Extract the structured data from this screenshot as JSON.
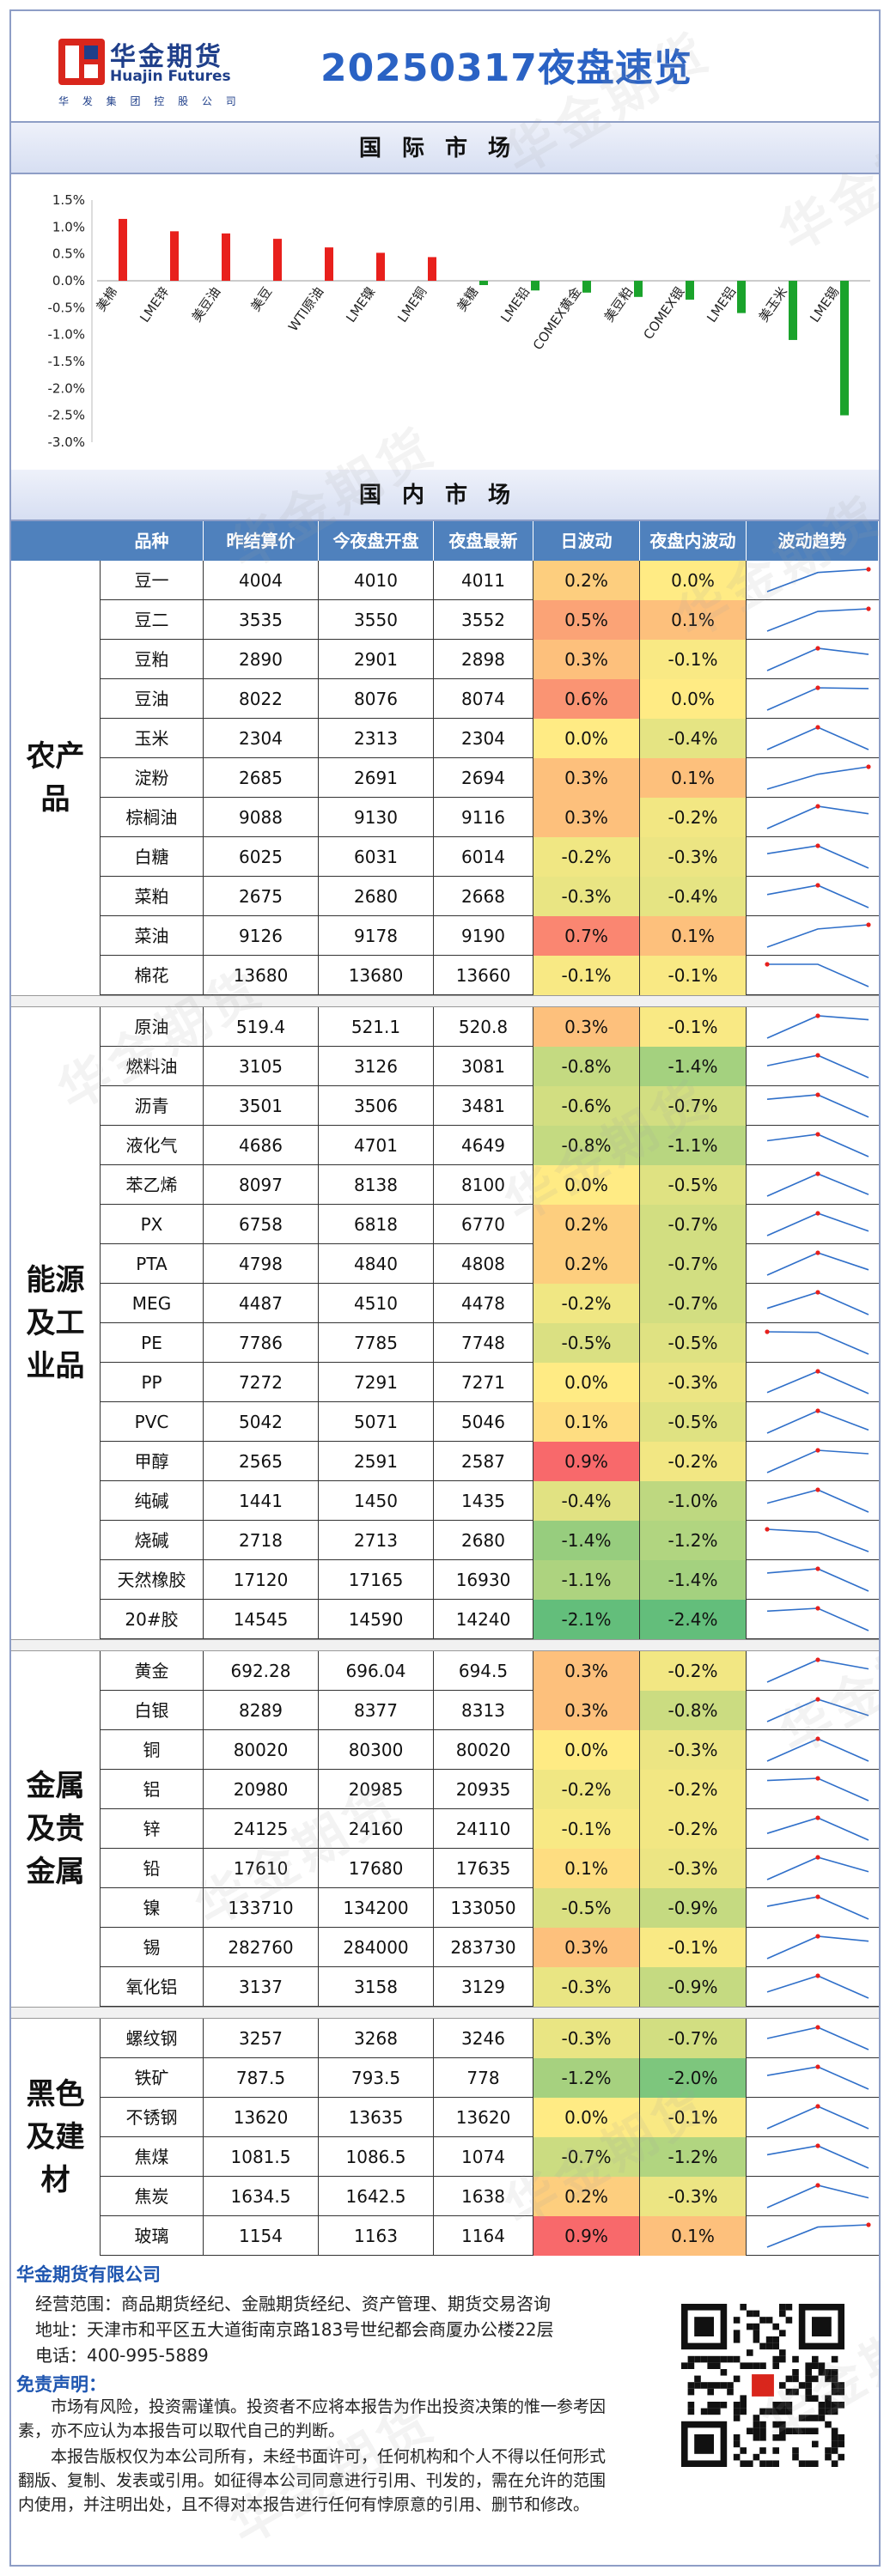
{
  "header": {
    "logo_cn": "华金期货",
    "logo_en": "Huajin Futures",
    "logo_group": "华 发 集 团 控 股 公 司",
    "title": "20250317夜盘速览"
  },
  "intl_section_title": "国际市场",
  "domestic_section_title": "国内市场",
  "watermark_text": "华金期货",
  "colors": {
    "pos": "#e8201c",
    "neg": "#1aa32b",
    "spark": "#2f6fc9",
    "header_bg": "#4f81bd",
    "title": "#2a62c4"
  },
  "chart_data": {
    "type": "bar",
    "title": "",
    "xlabel": "",
    "ylabel": "",
    "ylim": [
      -3.0,
      1.5
    ],
    "yticks": [
      "1.5%",
      "1.0%",
      "0.5%",
      "0.0%",
      "-0.5%",
      "-1.0%",
      "-1.5%",
      "-2.0%",
      "-2.5%",
      "-3.0%"
    ],
    "categories": [
      "美棉",
      "LME锌",
      "美豆油",
      "美豆",
      "WTI原油",
      "LME镍",
      "LME铜",
      "美糖",
      "LME铅",
      "COMEX黄金",
      "美豆粕",
      "COMEX银",
      "LME铝",
      "美玉米",
      "LME锡"
    ],
    "values": [
      1.15,
      0.92,
      0.88,
      0.78,
      0.62,
      0.52,
      0.44,
      -0.08,
      -0.18,
      -0.22,
      -0.3,
      -0.35,
      -0.6,
      -1.1,
      -2.5
    ]
  },
  "table": {
    "headers": [
      "品种",
      "昨结算价",
      "今夜盘开盘",
      "夜盘最新",
      "日波动",
      "夜盘内波动",
      "波动趋势"
    ],
    "groups": [
      {
        "label": "农产品",
        "rows": [
          {
            "name": "豆一",
            "prev": "4004",
            "open": "4010",
            "last": "4011",
            "day": "0.2%",
            "night": "0.0%",
            "d": 0.2,
            "n": 0.0
          },
          {
            "name": "豆二",
            "prev": "3535",
            "open": "3550",
            "last": "3552",
            "day": "0.5%",
            "night": "0.1%",
            "d": 0.5,
            "n": 0.1
          },
          {
            "name": "豆粕",
            "prev": "2890",
            "open": "2901",
            "last": "2898",
            "day": "0.3%",
            "night": "-0.1%",
            "d": 0.3,
            "n": -0.1
          },
          {
            "name": "豆油",
            "prev": "8022",
            "open": "8076",
            "last": "8074",
            "day": "0.6%",
            "night": "0.0%",
            "d": 0.6,
            "n": 0.0
          },
          {
            "name": "玉米",
            "prev": "2304",
            "open": "2313",
            "last": "2304",
            "day": "0.0%",
            "night": "-0.4%",
            "d": 0.0,
            "n": -0.4
          },
          {
            "name": "淀粉",
            "prev": "2685",
            "open": "2691",
            "last": "2694",
            "day": "0.3%",
            "night": "0.1%",
            "d": 0.3,
            "n": 0.1
          },
          {
            "name": "棕榈油",
            "prev": "9088",
            "open": "9130",
            "last": "9116",
            "day": "0.3%",
            "night": "-0.2%",
            "d": 0.3,
            "n": -0.2
          },
          {
            "name": "白糖",
            "prev": "6025",
            "open": "6031",
            "last": "6014",
            "day": "-0.2%",
            "night": "-0.3%",
            "d": -0.2,
            "n": -0.3
          },
          {
            "name": "菜粕",
            "prev": "2675",
            "open": "2680",
            "last": "2668",
            "day": "-0.3%",
            "night": "-0.4%",
            "d": -0.3,
            "n": -0.4
          },
          {
            "name": "菜油",
            "prev": "9126",
            "open": "9178",
            "last": "9190",
            "day": "0.7%",
            "night": "0.1%",
            "d": 0.7,
            "n": 0.1
          },
          {
            "name": "棉花",
            "prev": "13680",
            "open": "13680",
            "last": "13660",
            "day": "-0.1%",
            "night": "-0.1%",
            "d": -0.1,
            "n": -0.1
          }
        ]
      },
      {
        "label": "能源及工业品",
        "rows": [
          {
            "name": "原油",
            "prev": "519.4",
            "open": "521.1",
            "last": "520.8",
            "day": "0.3%",
            "night": "-0.1%",
            "d": 0.3,
            "n": -0.1
          },
          {
            "name": "燃料油",
            "prev": "3105",
            "open": "3126",
            "last": "3081",
            "day": "-0.8%",
            "night": "-1.4%",
            "d": -0.8,
            "n": -1.4
          },
          {
            "name": "沥青",
            "prev": "3501",
            "open": "3506",
            "last": "3481",
            "day": "-0.6%",
            "night": "-0.7%",
            "d": -0.6,
            "n": -0.7
          },
          {
            "name": "液化气",
            "prev": "4686",
            "open": "4701",
            "last": "4649",
            "day": "-0.8%",
            "night": "-1.1%",
            "d": -0.8,
            "n": -1.1
          },
          {
            "name": "苯乙烯",
            "prev": "8097",
            "open": "8138",
            "last": "8100",
            "day": "0.0%",
            "night": "-0.5%",
            "d": 0.0,
            "n": -0.5
          },
          {
            "name": "PX",
            "prev": "6758",
            "open": "6818",
            "last": "6770",
            "day": "0.2%",
            "night": "-0.7%",
            "d": 0.2,
            "n": -0.7
          },
          {
            "name": "PTA",
            "prev": "4798",
            "open": "4840",
            "last": "4808",
            "day": "0.2%",
            "night": "-0.7%",
            "d": 0.2,
            "n": -0.7
          },
          {
            "name": "MEG",
            "prev": "4487",
            "open": "4510",
            "last": "4478",
            "day": "-0.2%",
            "night": "-0.7%",
            "d": -0.2,
            "n": -0.7
          },
          {
            "name": "PE",
            "prev": "7786",
            "open": "7785",
            "last": "7748",
            "day": "-0.5%",
            "night": "-0.5%",
            "d": -0.5,
            "n": -0.5
          },
          {
            "name": "PP",
            "prev": "7272",
            "open": "7291",
            "last": "7271",
            "day": "0.0%",
            "night": "-0.3%",
            "d": 0.0,
            "n": -0.3
          },
          {
            "name": "PVC",
            "prev": "5042",
            "open": "5071",
            "last": "5046",
            "day": "0.1%",
            "night": "-0.5%",
            "d": 0.1,
            "n": -0.5
          },
          {
            "name": "甲醇",
            "prev": "2565",
            "open": "2591",
            "last": "2587",
            "day": "0.9%",
            "night": "-0.2%",
            "d": 0.9,
            "n": -0.2
          },
          {
            "name": "纯碱",
            "prev": "1441",
            "open": "1450",
            "last": "1435",
            "day": "-0.4%",
            "night": "-1.0%",
            "d": -0.4,
            "n": -1.0
          },
          {
            "name": "烧碱",
            "prev": "2718",
            "open": "2713",
            "last": "2680",
            "day": "-1.4%",
            "night": "-1.2%",
            "d": -1.4,
            "n": -1.2
          },
          {
            "name": "天然橡胶",
            "prev": "17120",
            "open": "17165",
            "last": "16930",
            "day": "-1.1%",
            "night": "-1.4%",
            "d": -1.1,
            "n": -1.4
          },
          {
            "name": "20#胶",
            "prev": "14545",
            "open": "14590",
            "last": "14240",
            "day": "-2.1%",
            "night": "-2.4%",
            "d": -2.1,
            "n": -2.4
          }
        ]
      },
      {
        "label": "金属及贵金属",
        "rows": [
          {
            "name": "黄金",
            "prev": "692.28",
            "open": "696.04",
            "last": "694.5",
            "day": "0.3%",
            "night": "-0.2%",
            "d": 0.3,
            "n": -0.2
          },
          {
            "name": "白银",
            "prev": "8289",
            "open": "8377",
            "last": "8313",
            "day": "0.3%",
            "night": "-0.8%",
            "d": 0.3,
            "n": -0.8
          },
          {
            "name": "铜",
            "prev": "80020",
            "open": "80300",
            "last": "80020",
            "day": "0.0%",
            "night": "-0.3%",
            "d": 0.0,
            "n": -0.3
          },
          {
            "name": "铝",
            "prev": "20980",
            "open": "20985",
            "last": "20935",
            "day": "-0.2%",
            "night": "-0.2%",
            "d": -0.2,
            "n": -0.2
          },
          {
            "name": "锌",
            "prev": "24125",
            "open": "24160",
            "last": "24110",
            "day": "-0.1%",
            "night": "-0.2%",
            "d": -0.1,
            "n": -0.2
          },
          {
            "name": "铅",
            "prev": "17610",
            "open": "17680",
            "last": "17635",
            "day": "0.1%",
            "night": "-0.3%",
            "d": 0.1,
            "n": -0.3
          },
          {
            "name": "镍",
            "prev": "133710",
            "open": "134200",
            "last": "133050",
            "day": "-0.5%",
            "night": "-0.9%",
            "d": -0.5,
            "n": -0.9
          },
          {
            "name": "锡",
            "prev": "282760",
            "open": "284000",
            "last": "283730",
            "day": "0.3%",
            "night": "-0.1%",
            "d": 0.3,
            "n": -0.1
          },
          {
            "name": "氧化铝",
            "prev": "3137",
            "open": "3158",
            "last": "3129",
            "day": "-0.3%",
            "night": "-0.9%",
            "d": -0.3,
            "n": -0.9
          }
        ]
      },
      {
        "label": "黑色及建材",
        "rows": [
          {
            "name": "螺纹钢",
            "prev": "3257",
            "open": "3268",
            "last": "3246",
            "day": "-0.3%",
            "night": "-0.7%",
            "d": -0.3,
            "n": -0.7
          },
          {
            "name": "铁矿",
            "prev": "787.5",
            "open": "793.5",
            "last": "778",
            "day": "-1.2%",
            "night": "-2.0%",
            "d": -1.2,
            "n": -2.0
          },
          {
            "name": "不锈钢",
            "prev": "13620",
            "open": "13635",
            "last": "13620",
            "day": "0.0%",
            "night": "-0.1%",
            "d": 0.0,
            "n": -0.1
          },
          {
            "name": "焦煤",
            "prev": "1081.5",
            "open": "1086.5",
            "last": "1074",
            "day": "-0.7%",
            "night": "-1.2%",
            "d": -0.7,
            "n": -1.2
          },
          {
            "name": "焦炭",
            "prev": "1634.5",
            "open": "1642.5",
            "last": "1638",
            "day": "0.2%",
            "night": "-0.3%",
            "d": 0.2,
            "n": -0.3
          },
          {
            "name": "玻璃",
            "prev": "1154",
            "open": "1163",
            "last": "1164",
            "day": "0.9%",
            "night": "0.1%",
            "d": 0.9,
            "n": 0.1
          }
        ]
      }
    ]
  },
  "footer": {
    "company": "华金期货有限公司",
    "scope": "经营范围：商品期货经纪、金融期货经纪、资产管理、期货交易咨询",
    "address": "地址：天津市和平区五大道街南京路183号世纪都会商厦办公楼22层",
    "phone": "电话：400-995-5889",
    "disclaimer_title": "免责声明：",
    "disclaimer_1": "市场有风险，投资需谨慎。投资者不应将本报告为作出投资决策的惟一参考因素，亦不应认为本报告可以取代自己的判断。",
    "disclaimer_2": "本报告版权仅为本公司所有，未经书面许可，任何机构和个人不得以任何形式翻版、复制、发表或引用。如征得本公司同意进行引用、刊发的，需在允许的范围内使用，并注明出处，且不得对本报告进行任何有悖原意的引用、删节和修改。"
  }
}
